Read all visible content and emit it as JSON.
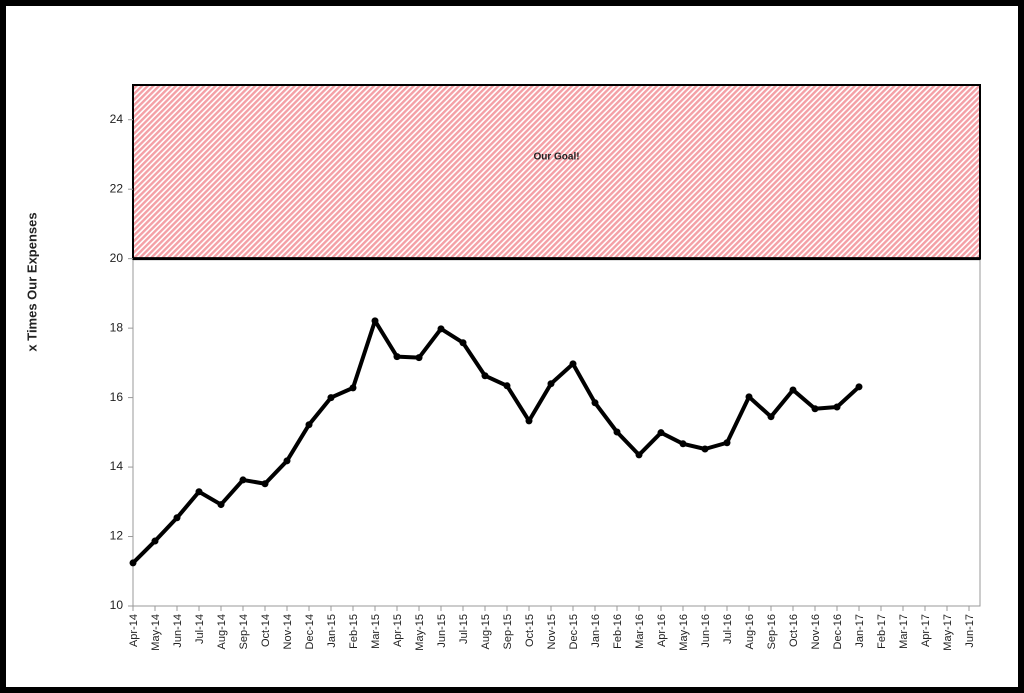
{
  "chart_data": {
    "type": "line",
    "y_label": "x Times Our Expenses",
    "categories": [
      "Apr-14",
      "May-14",
      "Jun-14",
      "Jul-14",
      "Aug-14",
      "Sep-14",
      "Oct-14",
      "Nov-14",
      "Dec-14",
      "Jan-15",
      "Feb-15",
      "Mar-15",
      "Apr-15",
      "May-15",
      "Jun-15",
      "Jul-15",
      "Aug-15",
      "Sep-15",
      "Oct-15",
      "Nov-15",
      "Dec-15",
      "Jan-16",
      "Feb-16",
      "Mar-16",
      "Apr-16",
      "May-16",
      "Jun-16",
      "Jul-16",
      "Aug-16",
      "Sep-16",
      "Oct-16",
      "Nov-16",
      "Dec-16",
      "Jan-17",
      "Feb-17",
      "Mar-17",
      "Apr-17",
      "May-17",
      "Jun-17"
    ],
    "values": [
      11.24,
      11.87,
      12.54,
      13.29,
      12.92,
      13.63,
      13.52,
      14.18,
      15.22,
      16.0,
      16.28,
      18.21,
      17.18,
      17.15,
      17.98,
      17.58,
      16.63,
      16.34,
      15.33,
      16.4,
      16.97,
      15.85,
      15.01,
      14.35,
      14.99,
      14.67,
      14.52,
      14.7,
      16.02,
      15.45,
      16.22,
      15.68,
      15.73,
      16.31,
      null,
      null,
      null,
      null,
      null
    ],
    "color": "#000000",
    "ylim": [
      10,
      25
    ],
    "yticks": [
      10,
      12,
      14,
      16,
      18,
      20,
      22,
      24
    ],
    "goal_band": {
      "from": 20,
      "to": 25,
      "label": "Our Goal!",
      "color": "#f4a0a6"
    }
  }
}
